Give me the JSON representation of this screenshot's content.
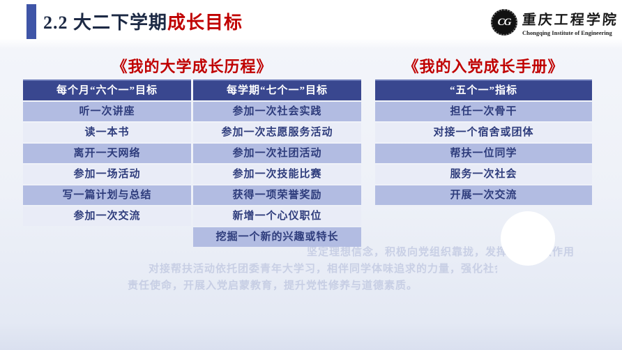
{
  "header": {
    "title_prefix": "2.2 大二下学期",
    "title_highlight": "成长目标",
    "logo": {
      "monogram": "CG",
      "name_cn": "重庆工程学院",
      "name_en": "Chongqing Institute of Engineering"
    }
  },
  "sections": {
    "left": {
      "heading": "《我的大学成长历程》",
      "columns": [
        "每个月“六个一”目标",
        "每学期“七个一”目标"
      ],
      "rows": [
        [
          "听一次讲座",
          "参加一次社会实践"
        ],
        [
          "读一本书",
          "参加一次志愿服务活动"
        ],
        [
          "离开一天网络",
          "参加一次社团活动"
        ],
        [
          "参加一场活动",
          "参加一次技能比赛"
        ],
        [
          "写一篇计划与总结",
          "获得一项荣誉奖励"
        ],
        [
          "参加一次交流",
          "新增一个心仪职位"
        ],
        [
          "",
          "挖掘一个新的兴趣或特长"
        ]
      ]
    },
    "right": {
      "heading": "《我的入党成长手册》",
      "columns": [
        "“五个一”指标"
      ],
      "rows": [
        "担任一次骨干",
        "对接一个宿舍或团体",
        "帮扶一位同学",
        "服务一次社会",
        "开展一次交流"
      ]
    }
  },
  "faded_text": {
    "lines": [
      "坚定理想信念，积极向党组织靠拢，发挥模范带头作用",
      "对接帮扶活动依托团委青年大学习，相伴同学体味追求的力量，强化社会",
      "责任使命，开展入党启蒙教育，提升党性修养与道德素质。"
    ]
  },
  "colors": {
    "accent_red": "#c00000",
    "accent_blue": "#3f55a7",
    "header_navy": "#39478f",
    "row_odd": "#b2bce2",
    "row_even": "#e9ecf7",
    "cell_text": "#2e3c7c"
  }
}
